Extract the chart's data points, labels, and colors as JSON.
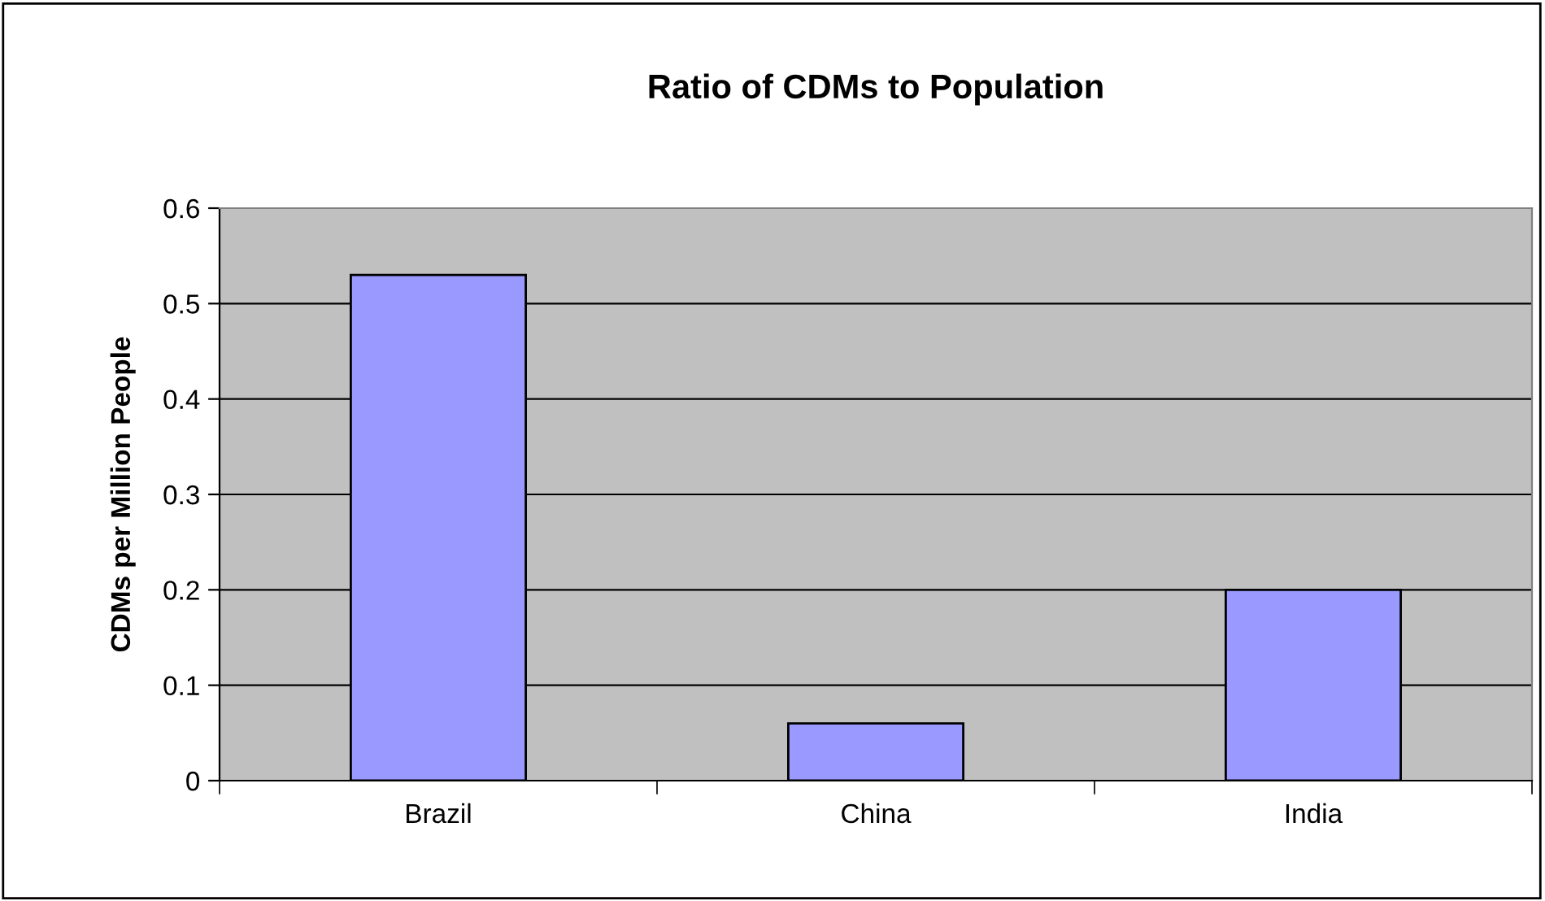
{
  "chart_data": {
    "type": "bar",
    "title": "Ratio of CDMs to Population",
    "ylabel": "CDMs per Million People",
    "categories": [
      "Brazil",
      "China",
      "India"
    ],
    "values": [
      0.53,
      0.06,
      0.2
    ],
    "color": "#9999ff",
    "ylim": [
      0,
      0.6
    ],
    "yticks": [
      0,
      0.1,
      0.2,
      0.3,
      0.4,
      0.5,
      0.6
    ],
    "grid": "y"
  }
}
